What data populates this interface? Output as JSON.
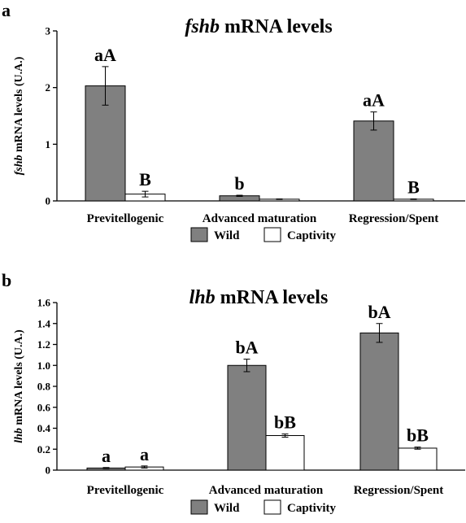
{
  "chart_data": [
    {
      "type": "bar",
      "panel": "a",
      "title_italic": "fshb",
      "title_rest": " mRNA levels",
      "ylabel_italic": "fshb",
      "ylabel_rest": " mRNA levels (U.A.)",
      "ylim": [
        0,
        3
      ],
      "yticks": [
        "0",
        "1",
        "2",
        "3"
      ],
      "categories": [
        "Previtellogenic",
        "Advanced maturation",
        "Regression/Spent"
      ],
      "series": [
        {
          "name": "Wild",
          "color": "#808080",
          "values": [
            2.03,
            0.09,
            1.41
          ],
          "errors": [
            0.34,
            0.01,
            0.16
          ],
          "labels": [
            "aA",
            "b",
            "aA"
          ]
        },
        {
          "name": "Captivity",
          "color": "#ffffff",
          "values": [
            0.12,
            0.03,
            0.03
          ],
          "errors": [
            0.05,
            0.005,
            0.005
          ],
          "labels": [
            "B",
            "",
            "B"
          ]
        }
      ],
      "legend": "bottom"
    },
    {
      "type": "bar",
      "panel": "b",
      "title_italic": "lhb",
      "title_rest": " mRNA levels",
      "ylabel_italic": "lhb",
      "ylabel_rest": " mRNA levels (U.A.)",
      "ylim": [
        0,
        1.6
      ],
      "yticks": [
        "0",
        "0.2",
        "0.4",
        "0.6",
        "0.8",
        "1.0",
        "1.2",
        "1.4",
        "1.6"
      ],
      "categories": [
        "Previtellogenic",
        "Advanced maturation",
        "Regression/Spent"
      ],
      "series": [
        {
          "name": "Wild",
          "color": "#808080",
          "values": [
            0.02,
            1.0,
            1.31
          ],
          "errors": [
            0.005,
            0.06,
            0.09
          ],
          "labels": [
            "a",
            "bA",
            "bA"
          ]
        },
        {
          "name": "Captivity",
          "color": "#ffffff",
          "values": [
            0.03,
            0.33,
            0.21
          ],
          "errors": [
            0.01,
            0.015,
            0.01
          ],
          "labels": [
            "a",
            "bB",
            "bB"
          ]
        }
      ],
      "legend": "bottom"
    }
  ]
}
